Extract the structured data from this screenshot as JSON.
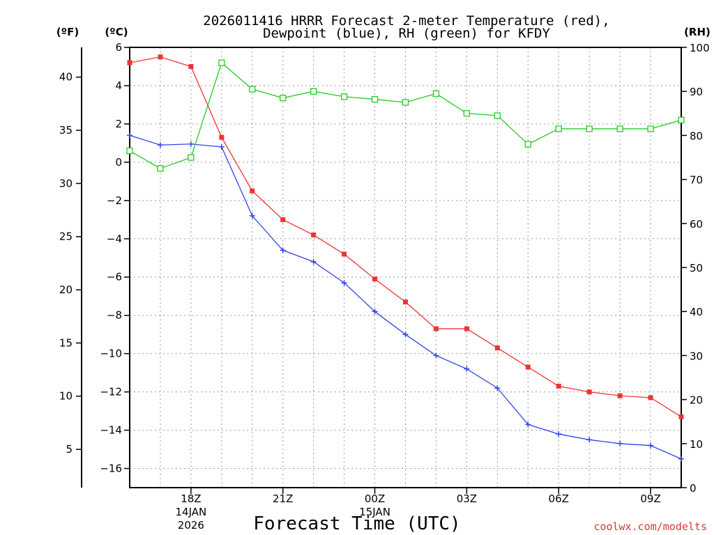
{
  "chart_data": {
    "type": "line",
    "title_line1": "2026011416 HRRR Forecast 2-meter Temperature (red),",
    "title_line2": "Dewpoint (blue), RH (green) for KFDY",
    "xlabel": "Forecast Time (UTC)",
    "credit": "coolwx.com/modelts",
    "units": {
      "fahrenheit": "(ºF)",
      "celsius": "(ºC)",
      "rh": "(RH)"
    },
    "x_hours": [
      16,
      17,
      18,
      19,
      20,
      21,
      22,
      23,
      24,
      25,
      26,
      27,
      28,
      29,
      30,
      31,
      32,
      33,
      34
    ],
    "x_range": [
      16,
      34
    ],
    "x_ticks": [
      {
        "hour": 18,
        "label": "18Z",
        "date": "14JAN",
        "year": "2026"
      },
      {
        "hour": 21,
        "label": "21Z"
      },
      {
        "hour": 24,
        "label": "00Z",
        "date": "15JAN"
      },
      {
        "hour": 27,
        "label": "03Z"
      },
      {
        "hour": 30,
        "label": "06Z"
      },
      {
        "hour": 33,
        "label": "09Z"
      }
    ],
    "celsius_ticks": [
      "6",
      "4",
      "2",
      "0",
      "−2",
      "−4",
      "−6",
      "−8",
      "−10",
      "−12",
      "−14",
      "−16"
    ],
    "fahrenheit_ticks": [
      "40",
      "35",
      "30",
      "25",
      "20",
      "15",
      "10",
      "5"
    ],
    "rh_ticks": [
      "100",
      "90",
      "80",
      "70",
      "60",
      "50",
      "40",
      "30",
      "20",
      "10",
      "0"
    ],
    "celsius_range": [
      -17,
      6
    ],
    "rh_range": [
      0,
      100
    ],
    "series": [
      {
        "name": "Temperature",
        "color": "#ee3333",
        "marker": "filled-square",
        "axis": "celsius",
        "values": [
          5.2,
          5.5,
          5.0,
          1.3,
          -1.5,
          -3.0,
          -3.8,
          -4.8,
          -6.1,
          -7.3,
          -8.7,
          -8.7,
          -9.7,
          -10.7,
          -11.7,
          -12.0,
          -12.2,
          -12.3,
          -13.3
        ]
      },
      {
        "name": "Dewpoint",
        "color": "#3344ee",
        "marker": "plus",
        "axis": "celsius",
        "values": [
          1.4,
          0.9,
          0.95,
          0.8,
          -2.8,
          -4.6,
          -5.2,
          -6.3,
          -7.8,
          -9.0,
          -10.1,
          -10.8,
          -11.8,
          -13.7,
          -14.2,
          -14.5,
          -14.7,
          -14.8,
          -15.5
        ]
      },
      {
        "name": "RH",
        "color": "#22cc22",
        "marker": "open-square",
        "axis": "rh",
        "values": [
          76.5,
          72.5,
          75.0,
          96.5,
          90.5,
          88.5,
          90.0,
          88.8,
          88.2,
          87.5,
          89.5,
          85.0,
          84.5,
          78.0,
          81.5,
          81.5,
          81.5,
          81.5,
          83.5
        ]
      }
    ]
  }
}
